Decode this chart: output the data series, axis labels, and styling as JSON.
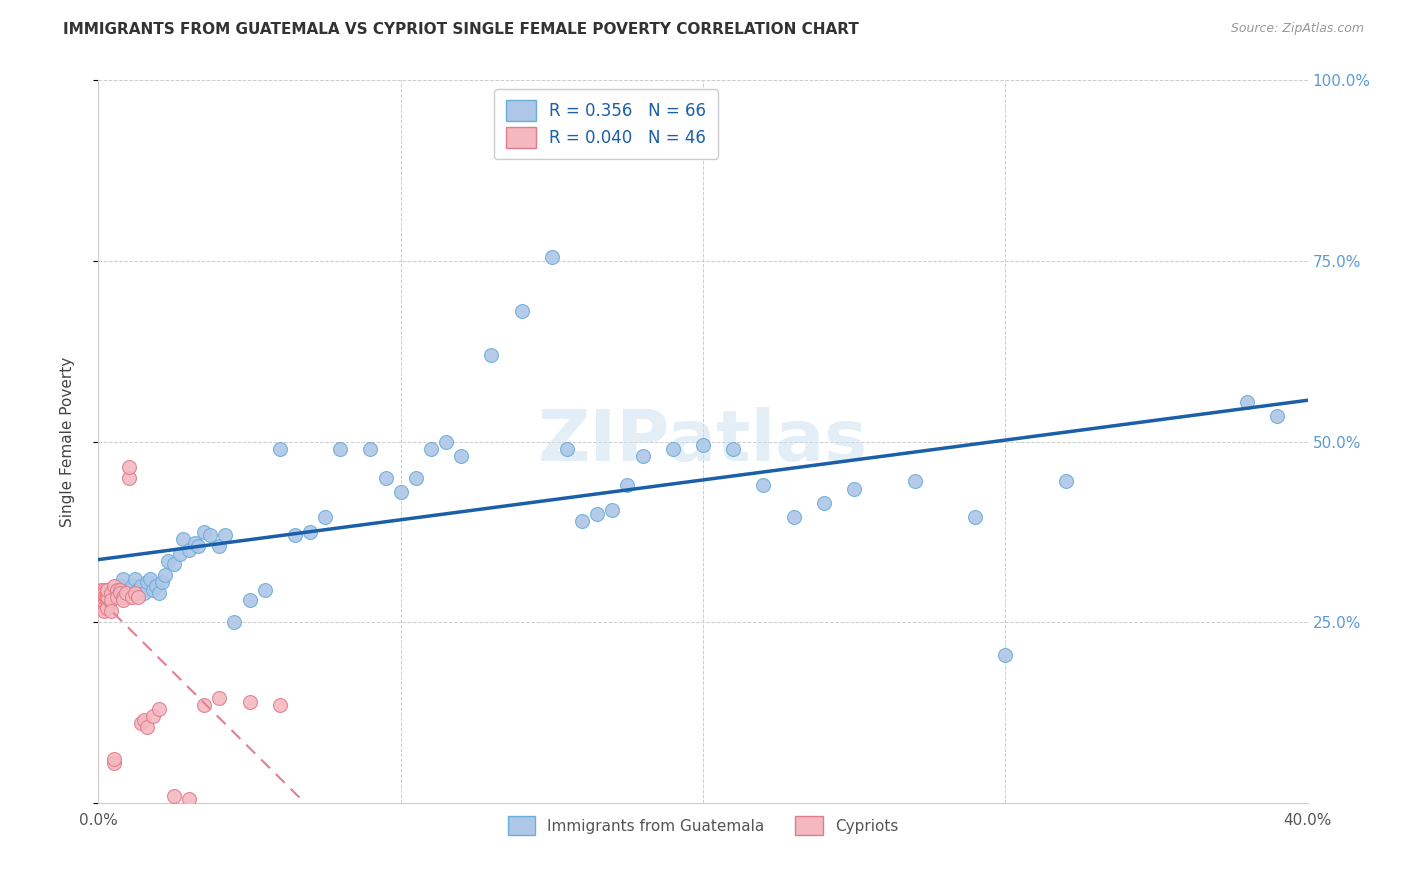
{
  "title": "IMMIGRANTS FROM GUATEMALA VS CYPRIOT SINGLE FEMALE POVERTY CORRELATION CHART",
  "source": "Source: ZipAtlas.com",
  "ylabel": "Single Female Poverty",
  "xlim": [
    0.0,
    0.4
  ],
  "ylim": [
    0.0,
    1.0
  ],
  "ytick_positions": [
    0.0,
    0.25,
    0.5,
    0.75,
    1.0
  ],
  "ytick_labels_right": [
    "",
    "25.0%",
    "50.0%",
    "75.0%",
    "100.0%"
  ],
  "xtick_positions": [
    0.0,
    0.1,
    0.2,
    0.3,
    0.4
  ],
  "xtick_labels": [
    "0.0%",
    "",
    "",
    "",
    "40.0%"
  ],
  "guatemala_color": "#aec6e8",
  "guatemala_edge": "#6aaed6",
  "cypriot_color": "#f4b8c1",
  "cypriot_edge": "#e07b8a",
  "trendline_blue": "#1a5fa8",
  "trendline_pink": "#e08090",
  "guatemala_R": 0.356,
  "guatemala_N": 66,
  "cypriot_R": 0.04,
  "cypriot_N": 46,
  "watermark": "ZIPatlas",
  "guatemala_scatter_x": [
    0.005,
    0.006,
    0.007,
    0.008,
    0.009,
    0.01,
    0.011,
    0.012,
    0.013,
    0.014,
    0.015,
    0.016,
    0.017,
    0.018,
    0.019,
    0.02,
    0.021,
    0.022,
    0.023,
    0.025,
    0.027,
    0.028,
    0.03,
    0.032,
    0.033,
    0.035,
    0.037,
    0.04,
    0.042,
    0.045,
    0.05,
    0.055,
    0.06,
    0.065,
    0.07,
    0.075,
    0.08,
    0.09,
    0.095,
    0.1,
    0.105,
    0.11,
    0.115,
    0.12,
    0.13,
    0.14,
    0.15,
    0.155,
    0.16,
    0.165,
    0.17,
    0.175,
    0.18,
    0.19,
    0.2,
    0.21,
    0.22,
    0.23,
    0.24,
    0.25,
    0.27,
    0.29,
    0.3,
    0.32,
    0.38,
    0.39
  ],
  "guatemala_scatter_y": [
    0.29,
    0.295,
    0.3,
    0.31,
    0.285,
    0.295,
    0.3,
    0.31,
    0.295,
    0.3,
    0.29,
    0.305,
    0.31,
    0.295,
    0.3,
    0.29,
    0.305,
    0.315,
    0.335,
    0.33,
    0.345,
    0.365,
    0.35,
    0.36,
    0.355,
    0.375,
    0.37,
    0.355,
    0.37,
    0.25,
    0.28,
    0.295,
    0.49,
    0.37,
    0.375,
    0.395,
    0.49,
    0.49,
    0.45,
    0.43,
    0.45,
    0.49,
    0.5,
    0.48,
    0.62,
    0.68,
    0.755,
    0.49,
    0.39,
    0.4,
    0.405,
    0.44,
    0.48,
    0.49,
    0.495,
    0.49,
    0.44,
    0.395,
    0.415,
    0.435,
    0.445,
    0.395,
    0.205,
    0.445,
    0.555,
    0.535
  ],
  "cypriot_scatter_x": [
    0.001,
    0.001,
    0.001,
    0.001,
    0.001,
    0.002,
    0.002,
    0.002,
    0.002,
    0.002,
    0.002,
    0.002,
    0.003,
    0.003,
    0.003,
    0.003,
    0.003,
    0.004,
    0.004,
    0.004,
    0.005,
    0.005,
    0.005,
    0.006,
    0.006,
    0.007,
    0.007,
    0.008,
    0.008,
    0.009,
    0.01,
    0.01,
    0.011,
    0.012,
    0.013,
    0.014,
    0.015,
    0.016,
    0.018,
    0.02,
    0.025,
    0.03,
    0.035,
    0.04,
    0.05,
    0.06
  ],
  "cypriot_scatter_y": [
    0.295,
    0.29,
    0.285,
    0.28,
    0.275,
    0.295,
    0.29,
    0.285,
    0.28,
    0.275,
    0.27,
    0.265,
    0.29,
    0.285,
    0.28,
    0.295,
    0.27,
    0.29,
    0.28,
    0.265,
    0.3,
    0.055,
    0.06,
    0.295,
    0.285,
    0.295,
    0.29,
    0.285,
    0.28,
    0.29,
    0.45,
    0.465,
    0.285,
    0.29,
    0.285,
    0.11,
    0.115,
    0.105,
    0.12,
    0.13,
    0.01,
    0.005,
    0.135,
    0.145,
    0.14,
    0.135
  ]
}
